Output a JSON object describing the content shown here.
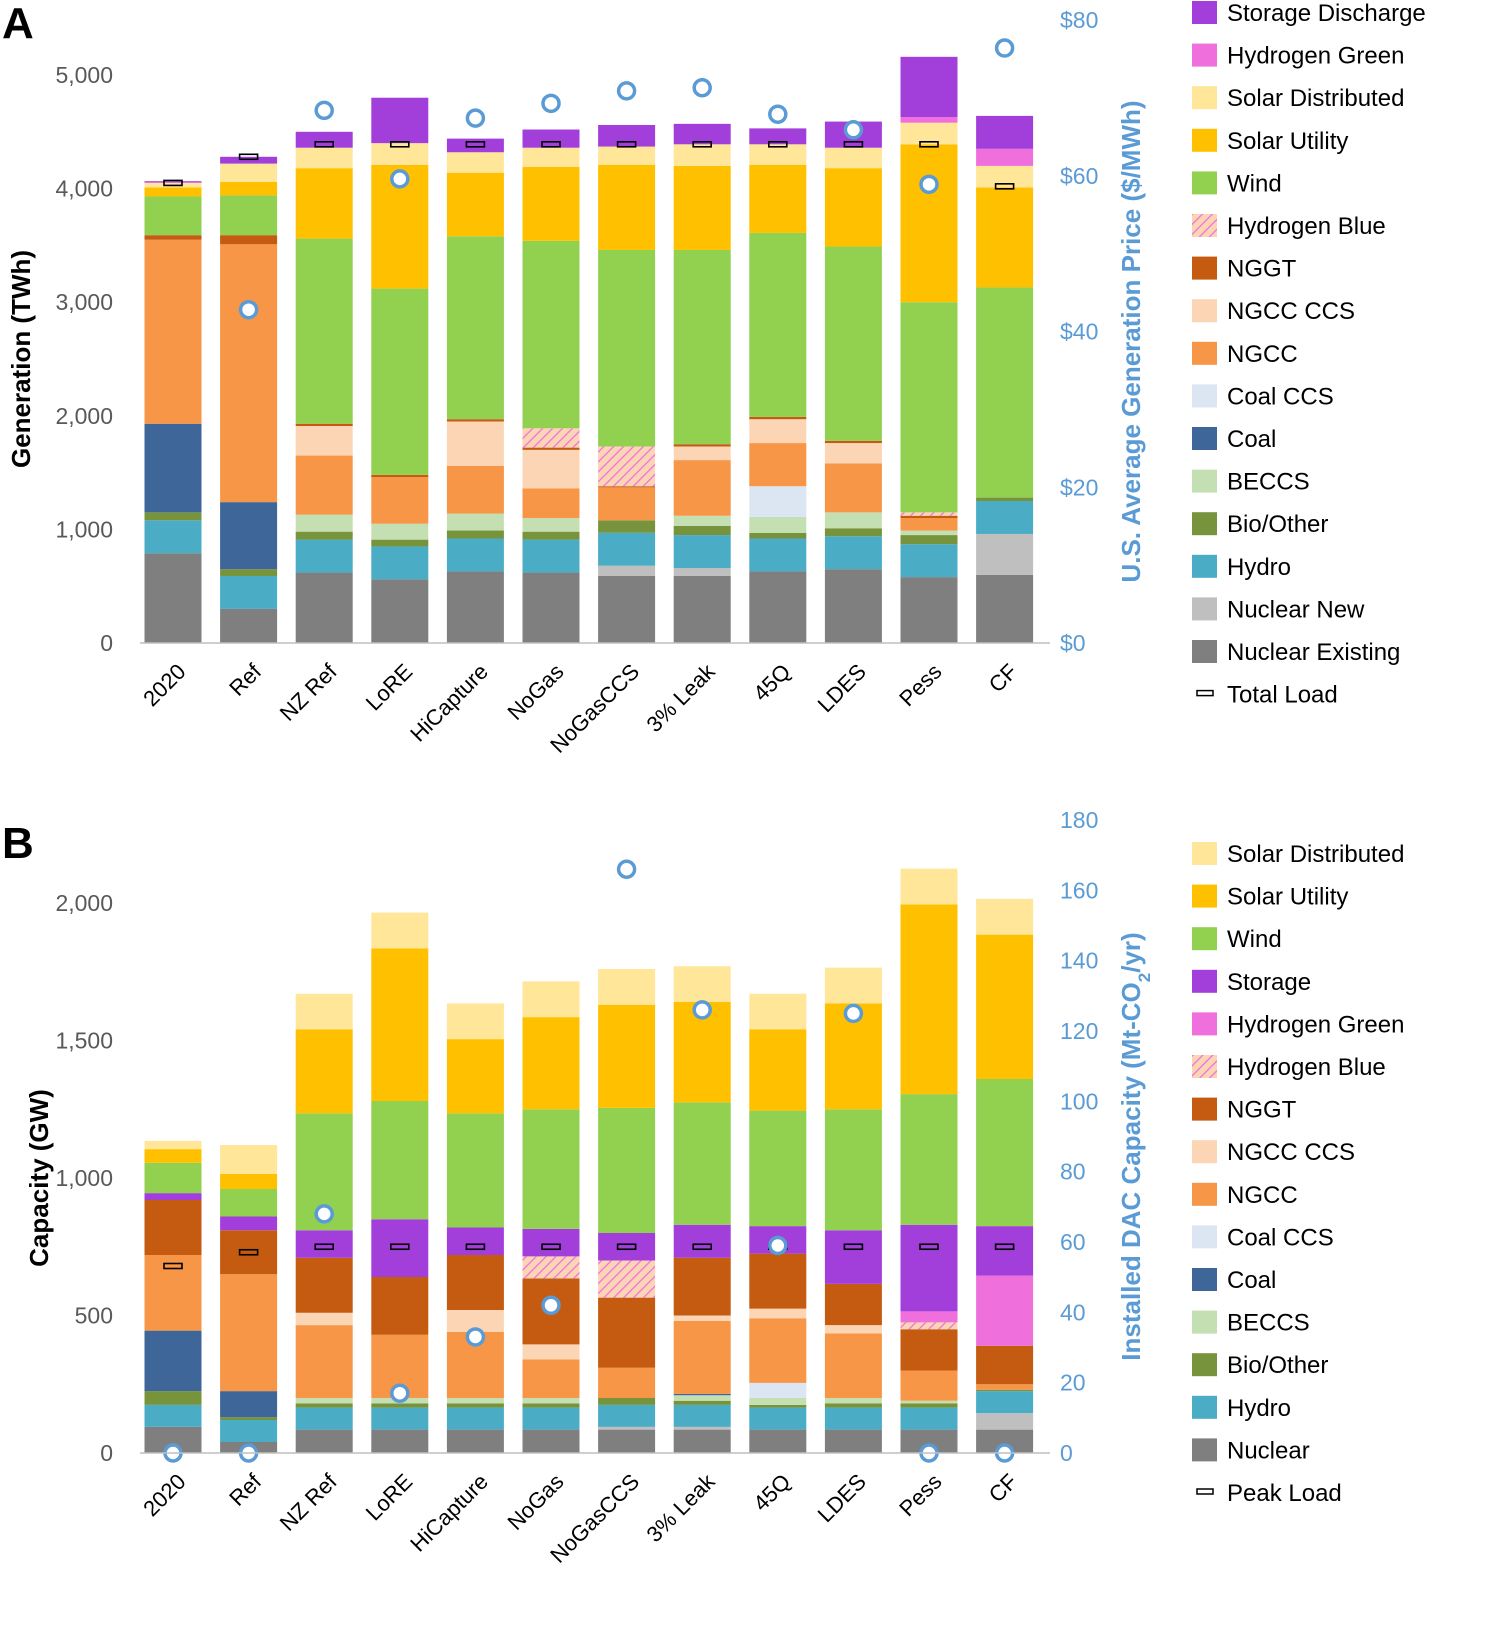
{
  "chart_data": [
    {
      "panel": "A",
      "type": "bar",
      "stacked": true,
      "ylabel": "Generation (TWh)",
      "ylim": [
        0,
        5000
      ],
      "yticks": [
        "0",
        "1,000",
        "2,000",
        "3,000",
        "4,000",
        "5,000"
      ],
      "ytick_values": [
        0,
        1000,
        2000,
        3000,
        4000,
        5000
      ],
      "y2label": "U.S. Average Generation Price ($/MWh)",
      "y2lim": [
        0,
        80
      ],
      "y2ticks": [
        "$0",
        "$20",
        "$40",
        "$60",
        "$80"
      ],
      "y2tick_values": [
        0,
        20,
        40,
        60,
        80
      ],
      "categories": [
        "2020",
        "Ref",
        "NZ Ref",
        "LoRE",
        "HiCapture",
        "NoGas",
        "NoGasCCS",
        "3% Leak",
        "45Q",
        "LDES",
        "Pess",
        "CF"
      ],
      "series": [
        {
          "name": "Nuclear Existing",
          "color": "#7f7f7f",
          "values": [
            790,
            300,
            620,
            560,
            630,
            620,
            590,
            590,
            630,
            650,
            580,
            600
          ]
        },
        {
          "name": "Nuclear New",
          "color": "#bfbfbf",
          "values": [
            0,
            0,
            0,
            0,
            0,
            0,
            90,
            70,
            0,
            0,
            0,
            360
          ]
        },
        {
          "name": "Hydro",
          "color": "#4bacc6",
          "values": [
            290,
            290,
            290,
            290,
            290,
            290,
            290,
            290,
            290,
            290,
            290,
            290
          ]
        },
        {
          "name": "Bio/Other",
          "color": "#77933c",
          "values": [
            70,
            60,
            70,
            60,
            70,
            70,
            110,
            80,
            50,
            70,
            80,
            30
          ]
        },
        {
          "name": "BECCS",
          "color": "#c4e0b2",
          "values": [
            0,
            0,
            150,
            140,
            150,
            120,
            0,
            90,
            140,
            140,
            40,
            0
          ]
        },
        {
          "name": "Coal",
          "color": "#3e6699",
          "values": [
            780,
            590,
            0,
            0,
            0,
            0,
            0,
            0,
            0,
            0,
            0,
            0
          ]
        },
        {
          "name": "Coal CCS",
          "color": "#dce6f2",
          "values": [
            0,
            0,
            0,
            0,
            0,
            0,
            0,
            0,
            270,
            0,
            0,
            0
          ]
        },
        {
          "name": "NGCC",
          "color": "#f79646",
          "values": [
            1620,
            2270,
            520,
            410,
            420,
            260,
            290,
            490,
            380,
            430,
            110,
            0
          ]
        },
        {
          "name": "NGCC CCS",
          "color": "#fcd5b5",
          "values": [
            0,
            0,
            260,
            0,
            390,
            340,
            0,
            120,
            210,
            180,
            0,
            0
          ]
        },
        {
          "name": "NGGT",
          "color": "#c55a11",
          "values": [
            40,
            80,
            20,
            20,
            20,
            20,
            10,
            20,
            20,
            20,
            20,
            0
          ]
        },
        {
          "name": "Hydrogen Blue",
          "color": "hatch",
          "values": [
            0,
            0,
            0,
            0,
            0,
            170,
            350,
            0,
            0,
            0,
            30,
            0
          ]
        },
        {
          "name": "Wind",
          "color": "#92d050",
          "values": [
            340,
            350,
            1630,
            1640,
            1610,
            1650,
            1730,
            1710,
            1620,
            1710,
            1850,
            1850
          ]
        },
        {
          "name": "Solar Utility",
          "color": "#ffc000",
          "values": [
            80,
            120,
            620,
            1090,
            560,
            650,
            750,
            740,
            600,
            690,
            1390,
            880
          ]
        },
        {
          "name": "Solar Distributed",
          "color": "#ffe699",
          "values": [
            40,
            160,
            180,
            190,
            180,
            170,
            160,
            190,
            180,
            180,
            190,
            190
          ]
        },
        {
          "name": "Hydrogen Green",
          "color": "#ef6fdd",
          "values": [
            5,
            0,
            0,
            0,
            0,
            0,
            0,
            0,
            0,
            0,
            50,
            150
          ]
        },
        {
          "name": "Storage Discharge",
          "color": "#a23fdb",
          "values": [
            10,
            60,
            140,
            400,
            120,
            160,
            190,
            180,
            140,
            230,
            530,
            290
          ]
        }
      ],
      "line_markers": {
        "name": "Total Load",
        "values": [
          4050,
          4280,
          4390,
          4390,
          4390,
          4390,
          4390,
          4390,
          4390,
          4390,
          4390,
          4020
        ]
      },
      "secondary_series": {
        "name": "U.S. Average Generation Price",
        "axis": "y2",
        "marker": "circle",
        "values": [
          null,
          42.8,
          68.4,
          59.6,
          67.4,
          69.3,
          70.9,
          71.3,
          67.9,
          65.9,
          58.9,
          76.4
        ]
      },
      "legend": [
        "Storage Discharge",
        "Hydrogen Green",
        "Solar Distributed",
        "Solar Utility",
        "Wind",
        "Hydrogen Blue",
        "NGGT",
        "NGCC CCS",
        "NGCC",
        "Coal CCS",
        "Coal",
        "BECCS",
        "Bio/Other",
        "Hydro",
        "Nuclear New",
        "Nuclear Existing",
        "Total Load"
      ],
      "legend_position": "right"
    },
    {
      "panel": "B",
      "type": "bar",
      "stacked": true,
      "ylabel": "Capacity (GW)",
      "ylim": [
        0,
        2000
      ],
      "yticks": [
        "0",
        "500",
        "1,000",
        "1,500",
        "2,000"
      ],
      "ytick_values": [
        0,
        500,
        1000,
        1500,
        2000
      ],
      "y2label": "Installed DAC Capacity (Mt-CO2/yr)",
      "y2lim": [
        0,
        180
      ],
      "y2ticks": [
        "0",
        "20",
        "40",
        "60",
        "80",
        "100",
        "120",
        "140",
        "160",
        "180"
      ],
      "y2tick_values": [
        0,
        20,
        40,
        60,
        80,
        100,
        120,
        140,
        160,
        180
      ],
      "categories": [
        "2020",
        "Ref",
        "NZ Ref",
        "LoRE",
        "HiCapture",
        "NoGas",
        "NoGasCCS",
        "3% Leak",
        "45Q",
        "LDES",
        "Pess",
        "CF"
      ],
      "series": [
        {
          "name": "Nuclear",
          "color": "#7f7f7f",
          "values": [
            95,
            40,
            85,
            85,
            85,
            85,
            85,
            85,
            85,
            85,
            85,
            85
          ]
        },
        {
          "name": "Nuclear New",
          "color": "#bfbfbf",
          "values": [
            0,
            0,
            0,
            0,
            0,
            0,
            10,
            10,
            0,
            0,
            0,
            60
          ]
        },
        {
          "name": "Hydro",
          "color": "#4bacc6",
          "values": [
            80,
            80,
            80,
            80,
            80,
            80,
            80,
            80,
            80,
            80,
            80,
            80
          ]
        },
        {
          "name": "Bio/Other",
          "color": "#77933c",
          "values": [
            50,
            10,
            15,
            15,
            15,
            15,
            25,
            15,
            10,
            15,
            15,
            5
          ]
        },
        {
          "name": "BECCS",
          "color": "#c4e0b2",
          "values": [
            0,
            0,
            20,
            20,
            20,
            20,
            0,
            20,
            25,
            20,
            10,
            0
          ]
        },
        {
          "name": "Coal",
          "color": "#3e6699",
          "values": [
            220,
            95,
            0,
            0,
            0,
            0,
            0,
            5,
            0,
            0,
            0,
            0
          ]
        },
        {
          "name": "Coal CCS",
          "color": "#dce6f2",
          "values": [
            0,
            0,
            0,
            0,
            0,
            0,
            0,
            0,
            55,
            0,
            0,
            0
          ]
        },
        {
          "name": "NGCC",
          "color": "#f79646",
          "values": [
            275,
            425,
            265,
            230,
            240,
            140,
            110,
            265,
            235,
            235,
            110,
            20
          ]
        },
        {
          "name": "NGCC CCS",
          "color": "#fcd5b5",
          "values": [
            0,
            0,
            45,
            0,
            80,
            55,
            0,
            20,
            35,
            30,
            0,
            0
          ]
        },
        {
          "name": "NGGT",
          "color": "#c55a11",
          "values": [
            200,
            160,
            200,
            210,
            200,
            240,
            255,
            210,
            200,
            150,
            150,
            140
          ]
        },
        {
          "name": "Hydrogen Blue",
          "color": "hatch",
          "values": [
            0,
            0,
            0,
            0,
            0,
            80,
            135,
            0,
            0,
            0,
            25,
            0
          ]
        },
        {
          "name": "Hydrogen Green",
          "color": "#ef6fdd",
          "values": [
            0,
            0,
            0,
            0,
            0,
            0,
            0,
            0,
            0,
            0,
            40,
            255
          ]
        },
        {
          "name": "Storage",
          "color": "#a23fdb",
          "values": [
            25,
            50,
            100,
            210,
            100,
            100,
            100,
            120,
            100,
            195,
            315,
            180
          ]
        },
        {
          "name": "Wind",
          "color": "#92d050",
          "values": [
            110,
            100,
            425,
            430,
            415,
            435,
            455,
            445,
            420,
            440,
            475,
            535
          ]
        },
        {
          "name": "Solar Utility",
          "color": "#ffc000",
          "values": [
            50,
            55,
            305,
            555,
            270,
            335,
            375,
            365,
            295,
            385,
            690,
            525
          ]
        },
        {
          "name": "Solar Distributed",
          "color": "#ffe699",
          "values": [
            30,
            105,
            130,
            130,
            130,
            130,
            130,
            130,
            130,
            130,
            130,
            130
          ]
        }
      ],
      "line_markers": {
        "name": "Peak Load",
        "values": [
          680,
          730,
          750,
          750,
          750,
          750,
          750,
          750,
          750,
          750,
          750,
          750
        ]
      },
      "secondary_series": {
        "name": "Installed DAC Capacity",
        "axis": "y2",
        "marker": "circle",
        "values": [
          0,
          0,
          68,
          17,
          33,
          42,
          166,
          126,
          59,
          125,
          0,
          0
        ]
      },
      "legend": [
        "Solar Distributed",
        "Solar Utility",
        "Wind",
        "Storage",
        "Hydrogen Green",
        "Hydrogen Blue",
        "NGGT",
        "NGCC CCS",
        "NGCC",
        "Coal CCS",
        "Coal",
        "BECCS",
        "Bio/Other",
        "Hydro",
        "Nuclear",
        "Peak Load"
      ],
      "legend_position": "right"
    }
  ]
}
